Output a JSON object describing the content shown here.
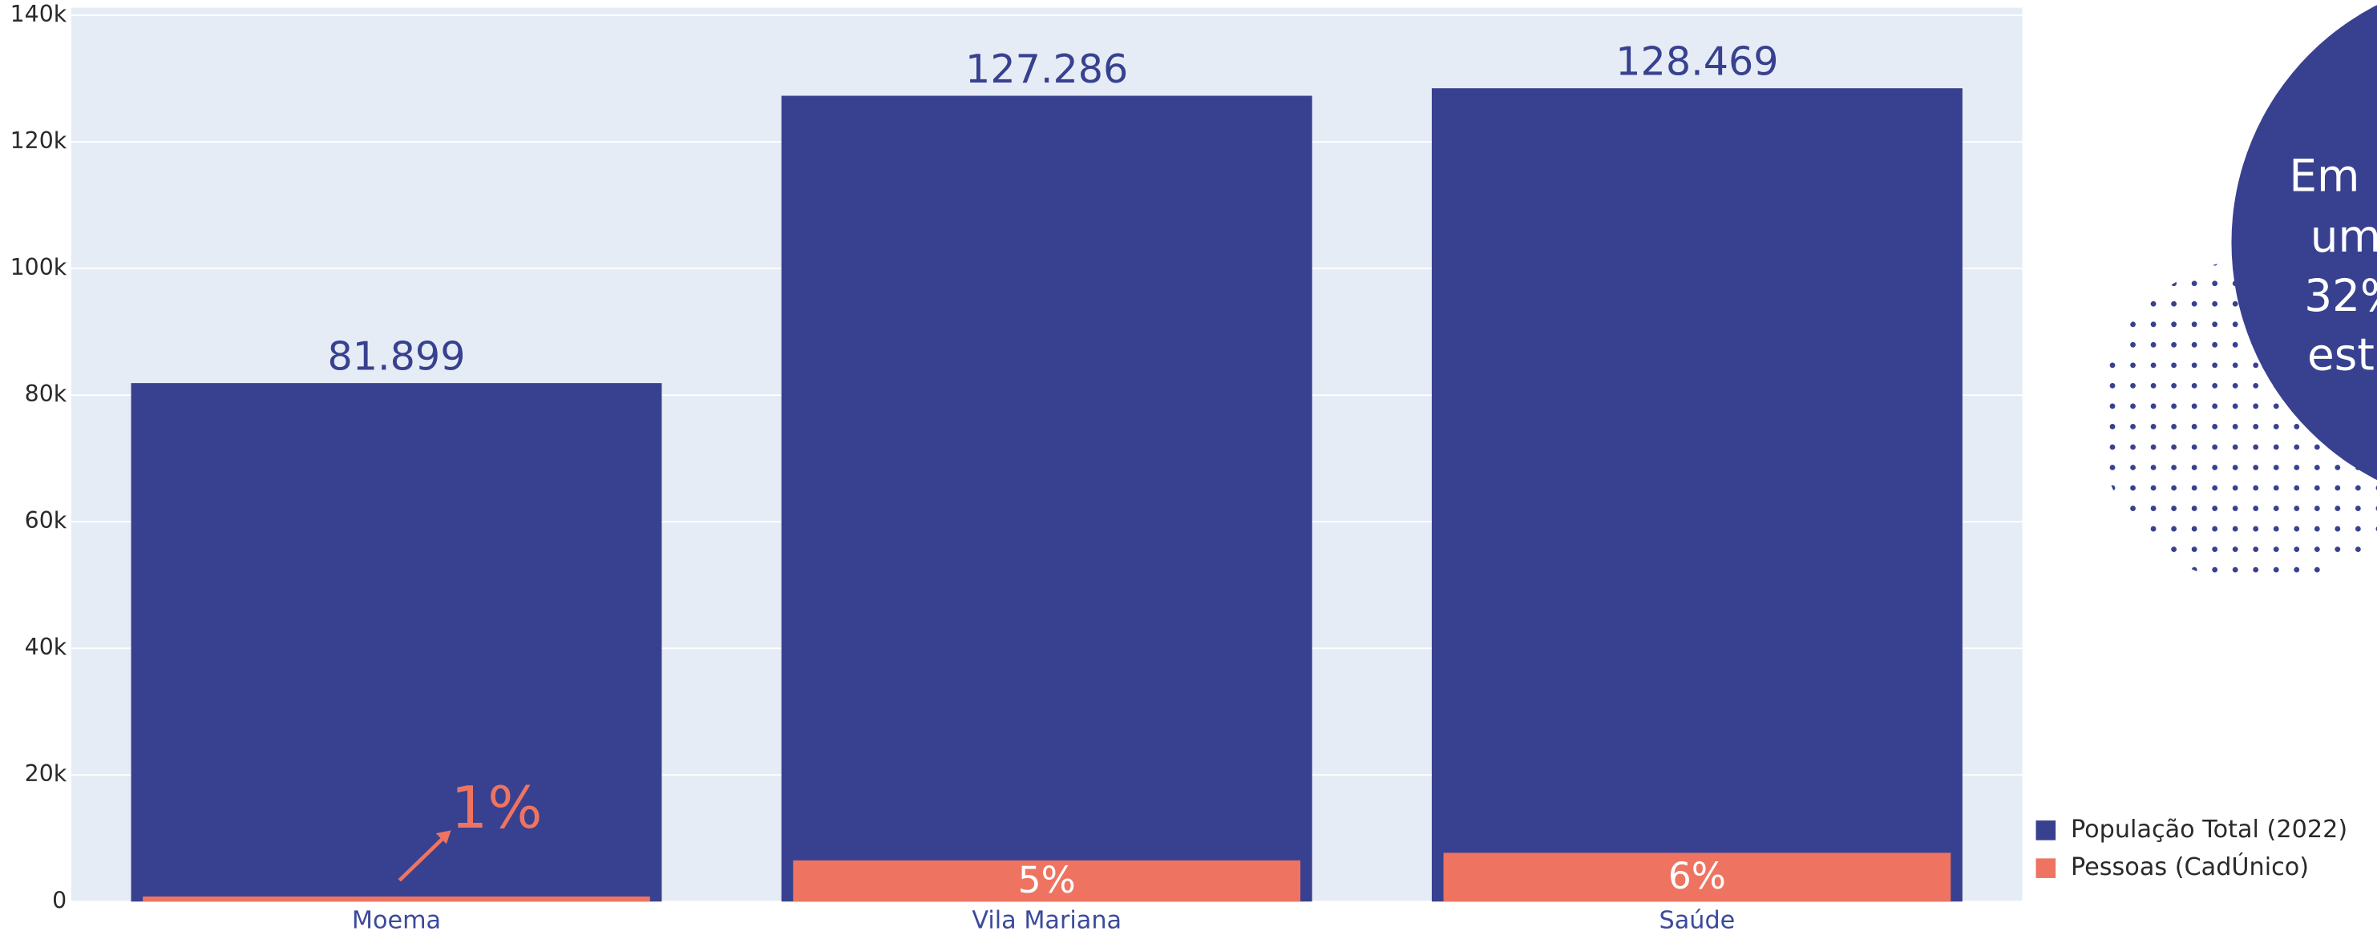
{
  "chart_data": {
    "type": "bar",
    "barmode": "overlay",
    "categories": [
      "Moema",
      "Vila Mariana",
      "Saúde"
    ],
    "series": [
      {
        "name": "População Total (2022)",
        "color": "#38418f",
        "values": [
          81899,
          127286,
          128469
        ],
        "value_labels": [
          "81.899",
          "127.286",
          "128.469"
        ]
      },
      {
        "name": "Pessoas (CadÚnico)",
        "color": "#ee7461",
        "values": [
          800,
          6500,
          7700
        ]
      }
    ],
    "annotations": [
      "1%",
      "5%",
      "6%"
    ],
    "ylim": [
      0,
      140000
    ],
    "yticks": [
      0,
      {
        "value": 20000,
        "label": "20k"
      },
      {
        "value": 40000,
        "label": "40k"
      },
      {
        "value": 60000,
        "label": "60k"
      },
      {
        "value": 80000,
        "label": "80k"
      },
      {
        "value": 100000,
        "label": "100k"
      },
      {
        "value": 120000,
        "label": "120k"
      },
      {
        "value": 140000,
        "label": "140k"
      }
    ],
    "grid": true,
    "legend": "bottom-right",
    "plot_background": "#e5ecf6"
  },
  "callout": {
    "lines": [
      "Em",
      "um",
      "32%",
      "est"
    ]
  }
}
